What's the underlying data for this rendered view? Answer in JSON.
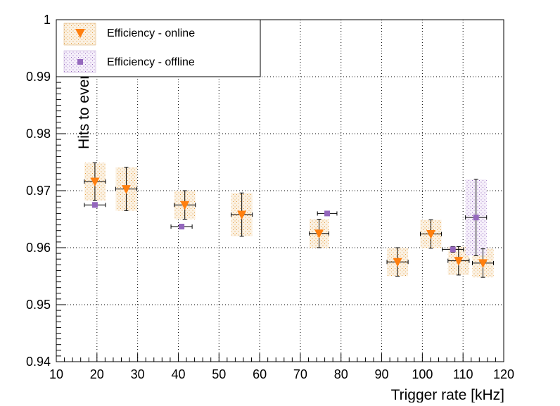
{
  "chart_data": {
    "type": "scatter",
    "xlabel": "Trigger rate [kHz]",
    "ylabel": "Hits to events ratio",
    "xlim": [
      10,
      120
    ],
    "ylim": [
      0.94,
      1.0
    ],
    "xticks": [
      10,
      20,
      30,
      40,
      50,
      60,
      70,
      80,
      90,
      100,
      110,
      120
    ],
    "xtick_labels": [
      "10",
      "20",
      "30",
      "40",
      "50",
      "60",
      "70",
      "80",
      "90",
      "100",
      "110",
      "120"
    ],
    "yticks": [
      0.94,
      0.95,
      0.96,
      0.97,
      0.98,
      0.99,
      1.0
    ],
    "ytick_labels": [
      "0.94",
      "0.95",
      "0.96",
      "0.97",
      "0.98",
      "0.99",
      "1"
    ],
    "grid": true,
    "legend_position": "top-left",
    "series": [
      {
        "name": "Efficiency - online",
        "marker": "triangle-down",
        "color": "#ff7f0e",
        "box_fill": "#f2cf9b",
        "points": [
          {
            "x": 19.5,
            "y": 0.9716,
            "xerr": 2.6,
            "yerr": 0.0033,
            "sys_x": 2.6,
            "sys_y": 0.0033
          },
          {
            "x": 27.2,
            "y": 0.9703,
            "xerr": 2.6,
            "yerr": 0.0038,
            "sys_x": 2.6,
            "sys_y": 0.0038
          },
          {
            "x": 41.6,
            "y": 0.9675,
            "xerr": 2.6,
            "yerr": 0.0025,
            "sys_x": 2.6,
            "sys_y": 0.0025
          },
          {
            "x": 55.6,
            "y": 0.9658,
            "xerr": 2.6,
            "yerr": 0.0038,
            "sys_x": 2.6,
            "sys_y": 0.0038
          },
          {
            "x": 74.6,
            "y": 0.9625,
            "xerr": 2.4,
            "yerr": 0.0025,
            "sys_x": 2.4,
            "sys_y": 0.0025
          },
          {
            "x": 93.9,
            "y": 0.9575,
            "xerr": 2.6,
            "yerr": 0.0025,
            "sys_x": 2.6,
            "sys_y": 0.0025
          },
          {
            "x": 102.1,
            "y": 0.9624,
            "xerr": 2.6,
            "yerr": 0.0025,
            "sys_x": 2.6,
            "sys_y": 0.0025
          },
          {
            "x": 108.9,
            "y": 0.9577,
            "xerr": 2.6,
            "yerr": 0.0025,
            "sys_x": 2.6,
            "sys_y": 0.0025
          },
          {
            "x": 114.9,
            "y": 0.9573,
            "xerr": 2.6,
            "yerr": 0.0025,
            "sys_x": 2.6,
            "sys_y": 0.0025
          }
        ]
      },
      {
        "name": "Efficiency - offline",
        "marker": "square",
        "color": "#9467bd",
        "box_fill": "#dcc8ea",
        "points": [
          {
            "x": 19.5,
            "y": 0.9675,
            "xerr": 2.6,
            "yerr": 0.0003,
            "sys_x": 0,
            "sys_y": 0
          },
          {
            "x": 40.8,
            "y": 0.9637,
            "xerr": 2.6,
            "yerr": 0.0003,
            "sys_x": 0,
            "sys_y": 0
          },
          {
            "x": 76.6,
            "y": 0.966,
            "xerr": 2.4,
            "yerr": 0.0003,
            "sys_x": 0,
            "sys_y": 0
          },
          {
            "x": 107.5,
            "y": 0.9597,
            "xerr": 2.6,
            "yerr": 0.0005,
            "sys_x": 0,
            "sys_y": 0
          },
          {
            "x": 113.2,
            "y": 0.9653,
            "xerr": 2.6,
            "yerr": 0.0067,
            "sys_x": 2.6,
            "sys_y": 0.0067
          }
        ]
      }
    ]
  }
}
